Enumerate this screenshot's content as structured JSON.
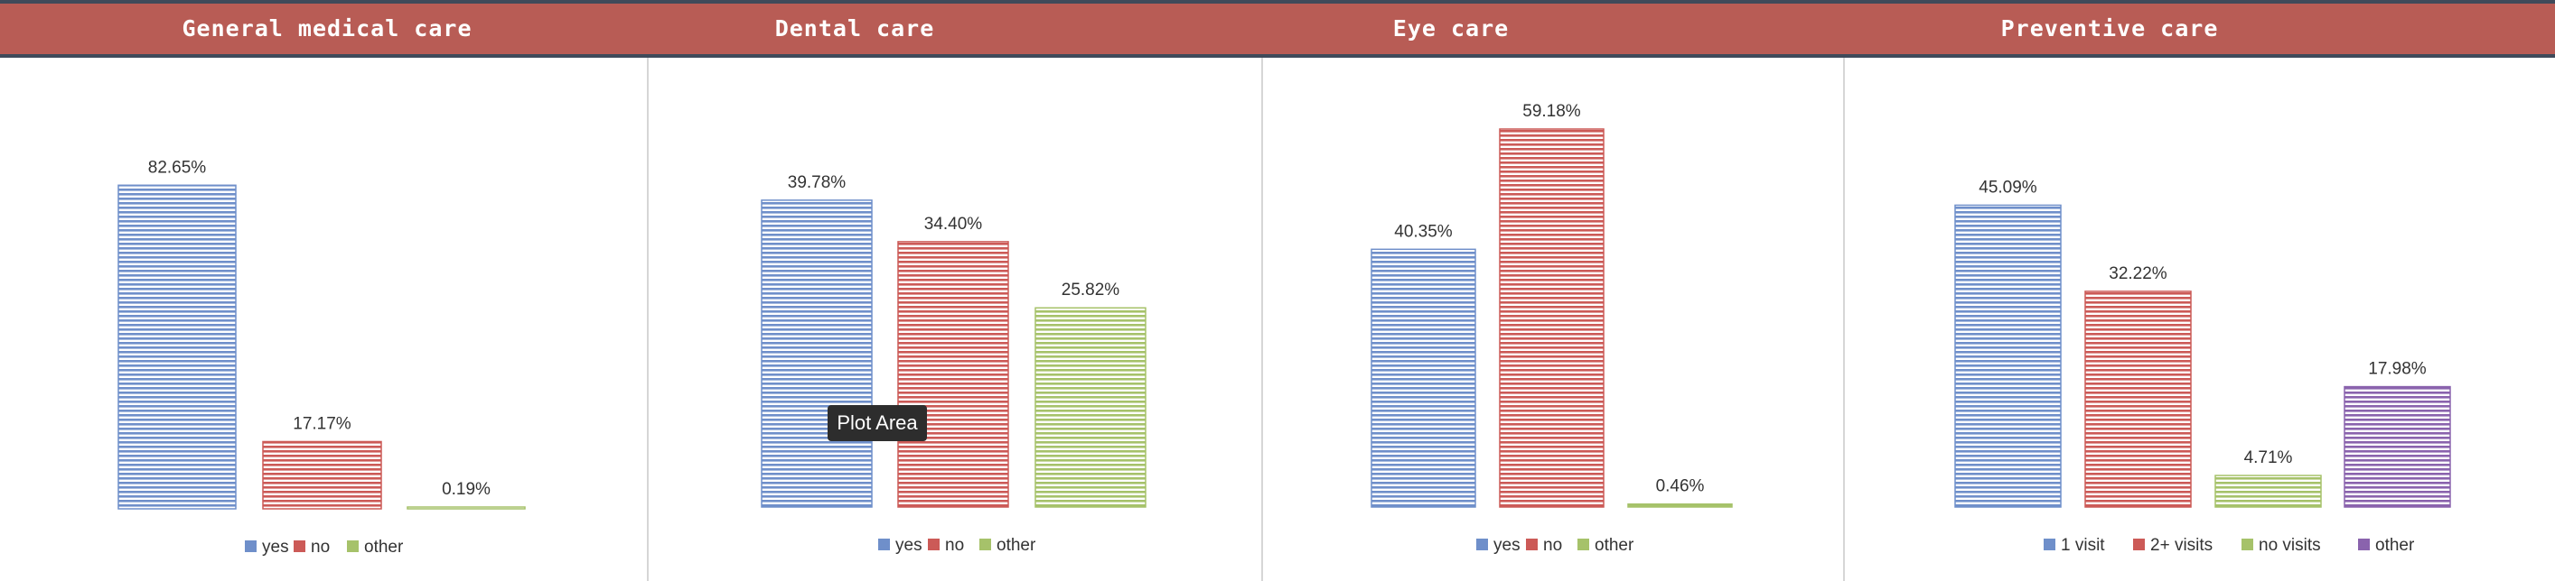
{
  "colors": {
    "header_bg": "#b85c55",
    "header_border": "#3f4a5a",
    "blue": "#6f8fca",
    "red": "#cc5a57",
    "green": "#a6c26a",
    "purple": "#8a63ad"
  },
  "tooltip": {
    "label": "Plot Area"
  },
  "chart_data": [
    {
      "type": "bar",
      "title": "General medical care",
      "categories": [
        "yes",
        "no",
        "other"
      ],
      "values": [
        82.65,
        17.17,
        0.19
      ],
      "labels": [
        "82.65%",
        "17.17%",
        "0.19%"
      ],
      "series_colors": [
        "blue",
        "red",
        "green"
      ],
      "ylim": [
        0,
        100
      ],
      "legend": "bottom"
    },
    {
      "type": "bar",
      "title": "Dental care",
      "categories": [
        "yes",
        "no",
        "other"
      ],
      "values": [
        39.78,
        34.4,
        25.82
      ],
      "labels": [
        "39.78%",
        "34.40%",
        "25.82%"
      ],
      "series_colors": [
        "blue",
        "red",
        "green"
      ],
      "ylim": [
        0,
        50
      ],
      "legend": "bottom"
    },
    {
      "type": "bar",
      "title": "Eye care",
      "categories": [
        "yes",
        "no",
        "other"
      ],
      "values": [
        40.35,
        59.18,
        0.46
      ],
      "labels": [
        "40.35%",
        "59.18%",
        "0.46%"
      ],
      "series_colors": [
        "blue",
        "red",
        "green"
      ],
      "ylim": [
        0,
        70
      ],
      "legend": "bottom"
    },
    {
      "type": "bar",
      "title": "Preventive care",
      "categories": [
        "1 visit",
        "2+ visits",
        "no visits",
        "other"
      ],
      "values": [
        45.09,
        32.22,
        4.71,
        17.98
      ],
      "labels": [
        "45.09%",
        "32.22%",
        "4.71%",
        "17.98%"
      ],
      "series_colors": [
        "blue",
        "red",
        "green",
        "purple"
      ],
      "ylim": [
        0,
        50
      ],
      "legend": "bottom"
    }
  ]
}
